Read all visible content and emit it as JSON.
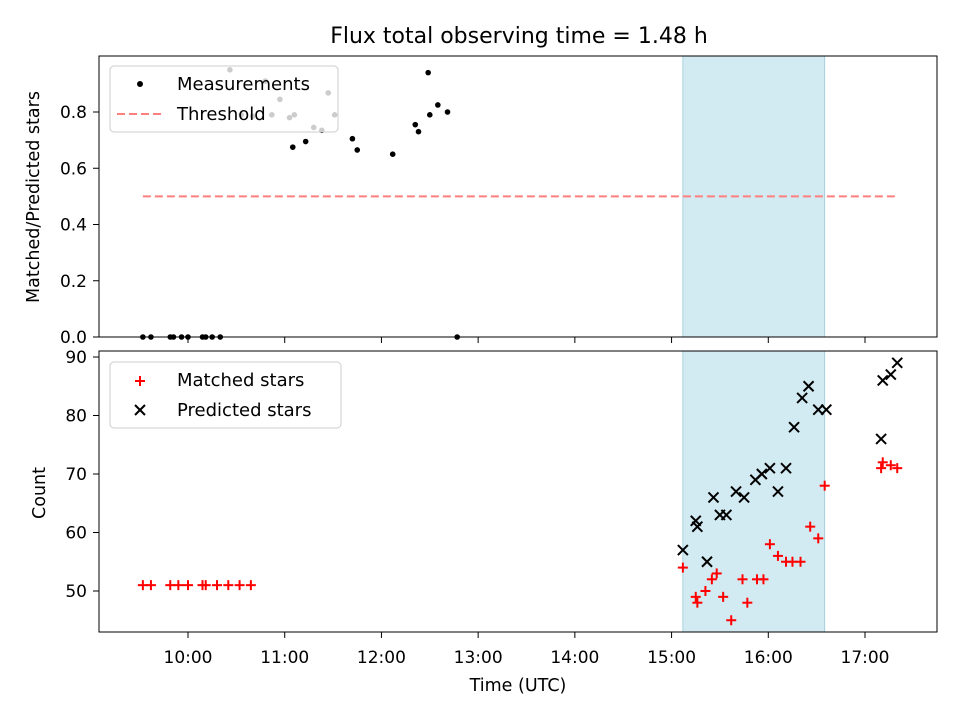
{
  "title": "Flux total observing time = 1.48 h",
  "chart_data": [
    {
      "type": "scatter",
      "panel": "top",
      "ylabel": "Matched/Predicted stars",
      "xlabel": "",
      "ylim": [
        0,
        1.0
      ],
      "yticks": [
        "0.0",
        "0.2",
        "0.4",
        "0.6",
        "0.8"
      ],
      "x_unit": "hours UTC",
      "shaded_interval": [
        "15:07",
        "16:35"
      ],
      "legend_position": "top-left",
      "series": [
        {
          "name": "Measurements",
          "marker": "dot",
          "color": "#000000",
          "x": [
            "09:32",
            "09:37",
            "09:49",
            "09:51",
            "09:56",
            "10:00",
            "10:09",
            "10:11",
            "10:15",
            "10:20",
            "10:26",
            "10:33",
            "10:40",
            "10:48",
            "10:52",
            "10:57",
            "11:03",
            "11:05",
            "11:06",
            "11:13",
            "11:18",
            "11:23",
            "11:27",
            "11:31",
            "11:42",
            "11:45",
            "12:07",
            "12:21",
            "12:23",
            "12:29",
            "12:30",
            "12:35",
            "12:41",
            "12:47"
          ],
          "y": [
            0.0,
            0.0,
            0.0,
            0.0,
            0.0,
            0.0,
            0.0,
            0.0,
            0.0,
            0.0,
            0.95,
            0.79,
            0.785,
            0.91,
            0.79,
            0.845,
            0.78,
            0.675,
            0.79,
            0.695,
            0.745,
            0.735,
            0.868,
            0.79,
            0.705,
            0.665,
            0.65,
            0.755,
            0.73,
            0.94,
            0.79,
            0.825,
            0.8,
            0.0
          ]
        },
        {
          "name": "Threshold",
          "marker": "dashed-line",
          "color": "#ff7f7f",
          "x": [
            "09:32",
            "17:20"
          ],
          "y": [
            0.5,
            0.5
          ]
        }
      ]
    },
    {
      "type": "scatter",
      "panel": "bottom",
      "ylabel": "Count",
      "xlabel": "Time (UTC)",
      "ylim": [
        42.5,
        91
      ],
      "yticks": [
        "50",
        "60",
        "70",
        "80",
        "90"
      ],
      "xticks": [
        "10:00",
        "11:00",
        "12:00",
        "13:00",
        "14:00",
        "15:00",
        "16:00",
        "17:00"
      ],
      "legend_position": "top-left",
      "series": [
        {
          "name": "Matched stars",
          "marker": "plus",
          "color": "#ff0000",
          "x": [
            "09:32",
            "09:37",
            "09:49",
            "09:54",
            "10:00",
            "10:09",
            "10:11",
            "10:18",
            "10:25",
            "10:32",
            "10:39",
            "15:07",
            "15:15",
            "15:16",
            "15:21",
            "15:25",
            "15:28",
            "15:32",
            "15:37",
            "15:44",
            "15:47",
            "15:53",
            "15:57",
            "16:01",
            "16:06",
            "16:11",
            "16:15",
            "16:20",
            "16:26",
            "16:31",
            "16:35",
            "17:10",
            "17:11",
            "17:16",
            "17:20"
          ],
          "y": [
            51,
            51,
            51,
            51,
            51,
            51,
            51,
            51,
            51,
            51,
            51,
            54,
            49,
            48,
            50,
            52,
            53,
            49,
            45,
            52,
            48,
            52,
            52,
            58,
            56,
            55,
            55,
            55,
            61,
            59,
            68,
            71,
            72,
            71.5,
            71
          ],
          "y_display_note": ""
        },
        {
          "name": "Predicted stars",
          "marker": "x",
          "color": "#000000",
          "x": [
            "15:07",
            "15:15",
            "15:16",
            "15:22",
            "15:26",
            "15:30",
            "15:34",
            "15:40",
            "15:45",
            "15:52",
            "15:56",
            "16:01",
            "16:06",
            "16:11",
            "16:16",
            "16:21",
            "16:25",
            "16:31",
            "16:36",
            "17:10",
            "17:11",
            "17:16",
            "17:20"
          ],
          "y": [
            57,
            62,
            61,
            55,
            66,
            63,
            63,
            67,
            66,
            69,
            70,
            71,
            67,
            71,
            78,
            83,
            85,
            81,
            81,
            76,
            86,
            87,
            89
          ]
        }
      ]
    }
  ]
}
